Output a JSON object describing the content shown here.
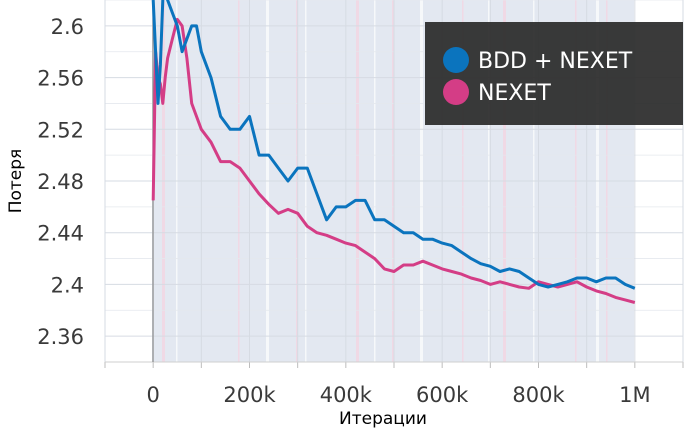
{
  "chart_data": {
    "type": "line",
    "xlabel": "Итерации",
    "ylabel": "Потеря",
    "xlim": [
      -100000,
      1100000
    ],
    "ylim": [
      2.34,
      2.62
    ],
    "x_ticks": [
      {
        "value": 0,
        "label": "0"
      },
      {
        "value": 200000,
        "label": "200k"
      },
      {
        "value": 400000,
        "label": "400k"
      },
      {
        "value": 600000,
        "label": "600k"
      },
      {
        "value": 800000,
        "label": "800k"
      },
      {
        "value": 1000000,
        "label": "1M"
      }
    ],
    "y_ticks": [
      {
        "value": 2.36,
        "label": "2.36"
      },
      {
        "value": 2.4,
        "label": "2.4"
      },
      {
        "value": 2.44,
        "label": "2.44"
      },
      {
        "value": 2.48,
        "label": "2.48"
      },
      {
        "value": 2.52,
        "label": "2.52"
      },
      {
        "value": 2.56,
        "label": "2.56"
      },
      {
        "value": 2.6,
        "label": "2.6"
      }
    ],
    "legend_position": "top-right",
    "series": [
      {
        "name": "BDD + NEXET",
        "color": "#0b74be",
        "x": [
          0,
          5000,
          10000,
          15000,
          20000,
          25000,
          30000,
          40000,
          50000,
          60000,
          70000,
          80000,
          90000,
          100000,
          120000,
          140000,
          160000,
          180000,
          200000,
          220000,
          240000,
          260000,
          280000,
          300000,
          320000,
          340000,
          360000,
          380000,
          400000,
          420000,
          440000,
          460000,
          480000,
          500000,
          520000,
          540000,
          560000,
          580000,
          600000,
          620000,
          640000,
          660000,
          680000,
          700000,
          720000,
          740000,
          760000,
          780000,
          800000,
          820000,
          840000,
          860000,
          880000,
          900000,
          920000,
          940000,
          960000,
          980000,
          1000000
        ],
        "values": [
          2.62,
          2.58,
          2.54,
          2.57,
          2.62,
          2.63,
          2.62,
          2.61,
          2.6,
          2.58,
          2.59,
          2.6,
          2.6,
          2.58,
          2.56,
          2.53,
          2.52,
          2.52,
          2.53,
          2.5,
          2.5,
          2.49,
          2.48,
          2.49,
          2.49,
          2.47,
          2.45,
          2.46,
          2.46,
          2.465,
          2.465,
          2.45,
          2.45,
          2.445,
          2.44,
          2.44,
          2.435,
          2.435,
          2.432,
          2.43,
          2.425,
          2.42,
          2.416,
          2.414,
          2.41,
          2.412,
          2.41,
          2.405,
          2.4,
          2.398,
          2.4,
          2.402,
          2.405,
          2.405,
          2.402,
          2.405,
          2.405,
          2.4,
          2.397
        ]
      },
      {
        "name": "NEXET",
        "color": "#d43d86",
        "x": [
          0,
          5000,
          10000,
          15000,
          20000,
          25000,
          30000,
          40000,
          50000,
          60000,
          70000,
          80000,
          90000,
          100000,
          120000,
          140000,
          160000,
          180000,
          200000,
          220000,
          240000,
          260000,
          280000,
          300000,
          320000,
          340000,
          360000,
          380000,
          400000,
          420000,
          440000,
          460000,
          480000,
          500000,
          520000,
          540000,
          560000,
          580000,
          600000,
          620000,
          640000,
          660000,
          680000,
          700000,
          720000,
          740000,
          760000,
          780000,
          800000,
          820000,
          840000,
          860000,
          880000,
          900000,
          920000,
          940000,
          960000,
          980000,
          1000000
        ],
        "values": [
          2.465,
          2.58,
          2.56,
          2.555,
          2.54,
          2.56,
          2.575,
          2.59,
          2.605,
          2.6,
          2.575,
          2.54,
          2.53,
          2.52,
          2.51,
          2.495,
          2.495,
          2.49,
          2.48,
          2.47,
          2.462,
          2.455,
          2.458,
          2.455,
          2.445,
          2.44,
          2.438,
          2.435,
          2.432,
          2.43,
          2.425,
          2.42,
          2.412,
          2.41,
          2.415,
          2.415,
          2.418,
          2.415,
          2.412,
          2.41,
          2.408,
          2.405,
          2.403,
          2.4,
          2.402,
          2.4,
          2.398,
          2.397,
          2.402,
          2.4,
          2.398,
          2.4,
          2.402,
          2.398,
          2.395,
          2.393,
          2.39,
          2.388,
          2.386
        ]
      }
    ]
  }
}
